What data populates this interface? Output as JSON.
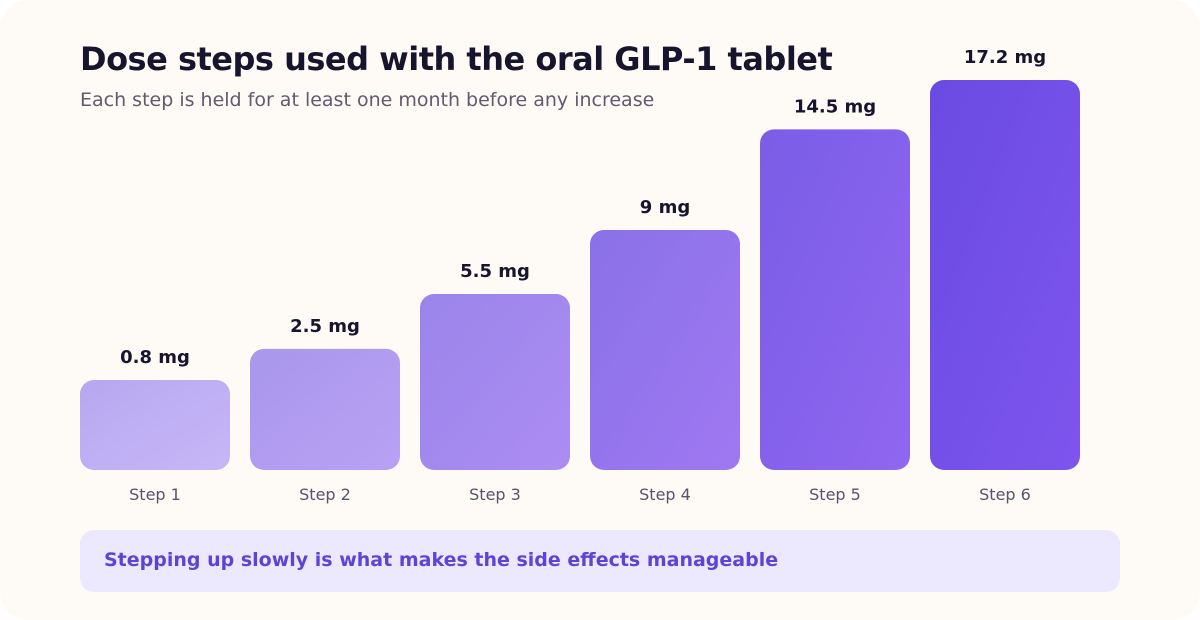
{
  "chart_data": {
    "type": "bar",
    "title": "Dose steps used with the oral GLP-1 tablet",
    "subtitle": "Each step is held for at least one month before any increase",
    "categories": [
      "Step 1",
      "Step 2",
      "Step 3",
      "Step 4",
      "Step 5",
      "Step 6"
    ],
    "values": [
      0.8,
      2.5,
      5.5,
      9,
      14.5,
      17.2
    ],
    "value_labels": [
      "0.8 mg",
      "2.5 mg",
      "5.5 mg",
      "9 mg",
      "14.5 mg",
      "17.2 mg"
    ],
    "xlabel": "",
    "ylabel": "",
    "grid": false,
    "legend": "none",
    "colors": [
      [
        "#B7A7F0",
        "#C7B7F7"
      ],
      [
        "#A897EC",
        "#B9A1F4"
      ],
      [
        "#9A85EA",
        "#AC8CF3"
      ],
      [
        "#8A71E8",
        "#9F78F2"
      ],
      [
        "#7A5DE6",
        "#9066F0"
      ],
      [
        "#6A4BE2",
        "#7E55EE"
      ]
    ]
  },
  "callout": {
    "text": "Stepping up slowly is what makes the side effects manageable"
  },
  "colors": {
    "background": "#FEFBF6",
    "title": "#17152E",
    "subtitle": "#5E5B6E",
    "callout_bg": "#ECE8FE",
    "callout_text": "#5C45D6"
  }
}
